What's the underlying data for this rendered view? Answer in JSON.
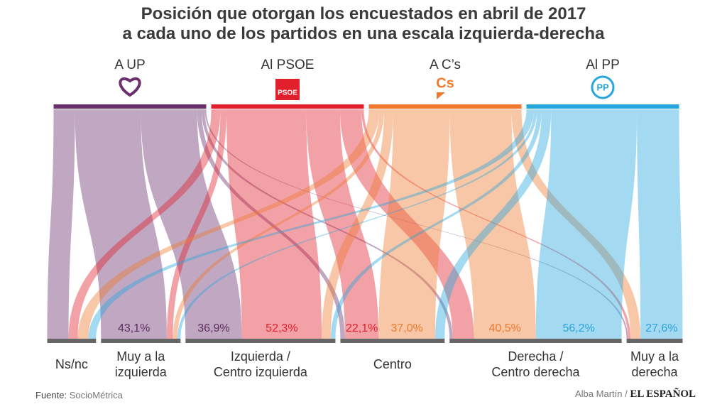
{
  "chart_data": {
    "type": "sankey",
    "title": "Posición que otorgan los encuestados en abril de 2017\na cada uno de los partidos en una escala izquierda-derecha",
    "categories": [
      "Ns/nc",
      "Muy a la\nizquierda",
      "Izquierda /\nCentro izquierda",
      "Centro",
      "Derecha /\nCentro derecha",
      "Muy a la\nderecha"
    ],
    "series": [
      {
        "name": "A UP",
        "color": "#6b2f6e",
        "label_color": "#5a2d5d",
        "values": [
          14,
          43.1,
          36.9,
          3,
          2,
          1
        ],
        "value_labels": [
          null,
          "43,1%",
          "36,9%",
          null,
          null,
          null
        ]
      },
      {
        "name": "Al PSOE",
        "logo": "PSOE",
        "color": "#e1202c",
        "label_color": "#e1202c",
        "values": [
          6,
          4,
          52.3,
          22.1,
          14,
          1.6
        ],
        "value_labels": [
          null,
          null,
          "52,3%",
          "22,1%",
          null,
          null
        ]
      },
      {
        "name": "A C’s",
        "logo": "Cs",
        "color": "#ef7a2f",
        "label_color": "#ec7a2d",
        "values": [
          7,
          3,
          6,
          37.0,
          40.5,
          6.5
        ],
        "value_labels": [
          null,
          null,
          null,
          "37,0%",
          "40,5%",
          null
        ]
      },
      {
        "name": "Al PP",
        "logo": "PP",
        "color": "#27a6de",
        "label_color": "#2ba3dc",
        "values": [
          5,
          2,
          3,
          6.2,
          56.2,
          27.6
        ],
        "value_labels": [
          null,
          null,
          null,
          null,
          "56,2%",
          "27,6%"
        ]
      }
    ],
    "footer": {
      "source_label": "Fuente:",
      "source": "SocioMétrica",
      "author": "Alba Martín /",
      "brand": "EL ESPAÑOL"
    }
  }
}
